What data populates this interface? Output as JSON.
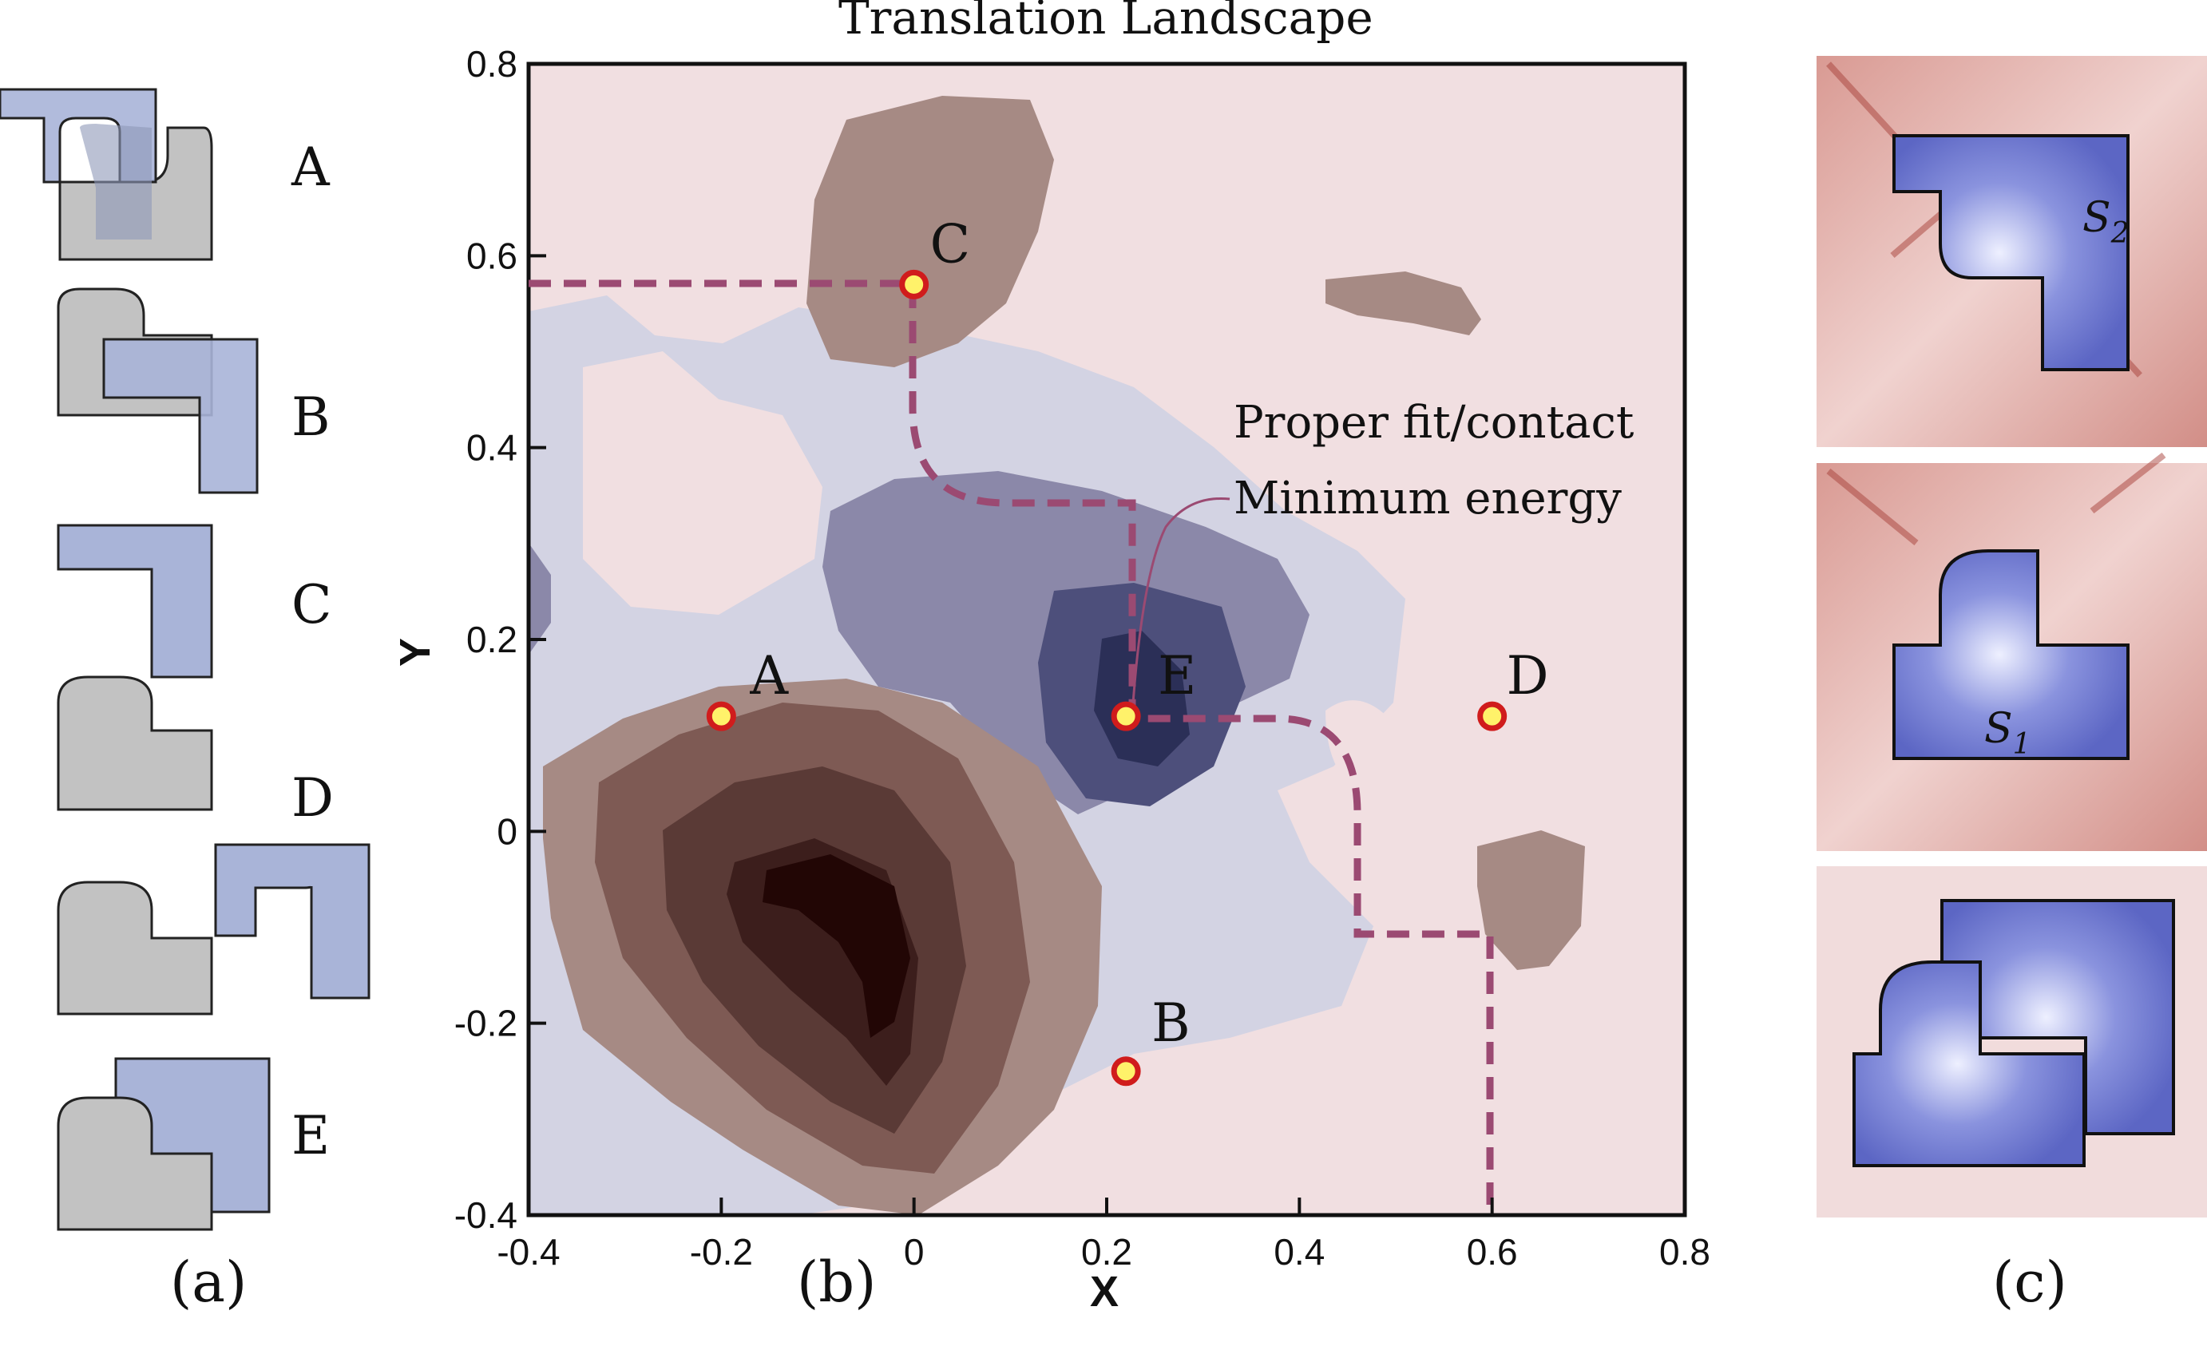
{
  "panel_a": {
    "caption": "(a)",
    "configs": [
      {
        "label": "A"
      },
      {
        "label": "B"
      },
      {
        "label": "C"
      },
      {
        "label": "D"
      },
      {
        "label": "E"
      }
    ]
  },
  "panel_b": {
    "caption": "(b)",
    "title": "Translation Landscape",
    "xlabel": "X",
    "ylabel": "Y",
    "x_ticks": [
      "-0.4",
      "-0.2",
      "0",
      "0.2",
      "0.4",
      "0.6",
      "0.8"
    ],
    "y_ticks": [
      "0.8",
      "0.6",
      "0.4",
      "0.2",
      "0",
      "-0.2",
      "-0.4"
    ],
    "xlim": [
      -0.4,
      0.8
    ],
    "ylim": [
      -0.4,
      0.8
    ],
    "points": [
      {
        "label": "A",
        "x": -0.2,
        "y": 0.12
      },
      {
        "label": "B",
        "x": 0.22,
        "y": -0.25
      },
      {
        "label": "C",
        "x": 0.0,
        "y": 0.57
      },
      {
        "label": "D",
        "x": 0.6,
        "y": 0.12
      },
      {
        "label": "E",
        "x": 0.22,
        "y": 0.12
      }
    ],
    "annotation_line1": "Proper fit/contact",
    "annotation_line2": "Minimum energy",
    "colors": {
      "path": "#9b4a72",
      "marker_fill": "#fff26a",
      "marker_ring": "#d01c1c",
      "background": "#f1dfe1"
    }
  },
  "panel_c": {
    "caption": "(c)",
    "shape_labels": [
      "S",
      "2",
      "S",
      "1"
    ]
  }
}
